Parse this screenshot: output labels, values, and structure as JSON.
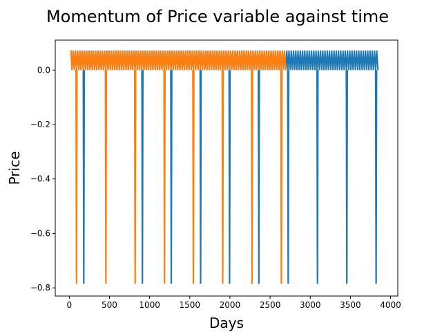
{
  "chart_data": {
    "type": "line",
    "title": "Momentum of Price variable against time",
    "xlabel": "Days",
    "ylabel": "Price",
    "xlim": [
      -175,
      4090
    ],
    "ylim": [
      -0.83,
      0.11
    ],
    "x_ticks": [
      0,
      500,
      1000,
      1500,
      2000,
      2500,
      3000,
      3500,
      4000
    ],
    "x_tick_labels": [
      "0",
      "500",
      "1000",
      "1500",
      "2000",
      "2500",
      "3000",
      "3500",
      "4000"
    ],
    "y_ticks": [
      0.0,
      -0.2,
      -0.4,
      -0.6,
      -0.8
    ],
    "y_tick_labels": [
      "0.0",
      "−0.2",
      "−0.4",
      "−0.6",
      "−0.8"
    ],
    "grid": false,
    "series": [
      {
        "color": "#1f77b4",
        "x_range": [
          20,
          3850
        ],
        "y_high": 0.072,
        "y_low": 0.0,
        "dip_value": -0.785,
        "dip_x": [
          180,
          910,
          1270,
          1635,
          1995,
          2360,
          2725,
          3090,
          3455,
          3820
        ],
        "band_end": 3850
      },
      {
        "color": "#ff7f0e",
        "x_range": [
          20,
          2700
        ],
        "y_high": 0.072,
        "y_low": 0.0,
        "dip_value": -0.785,
        "dip_x": [
          90,
          455,
          820,
          1185,
          1545,
          1910,
          2275,
          2640
        ],
        "band_end": 2700
      }
    ]
  }
}
